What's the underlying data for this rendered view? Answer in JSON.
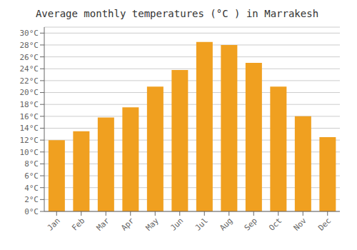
{
  "chart_data": {
    "type": "bar",
    "title": "Average monthly temperatures (°C ) in Marrakesh",
    "categories": [
      "Jan",
      "Feb",
      "Mar",
      "Apr",
      "May",
      "Jun",
      "Jul",
      "Aug",
      "Sep",
      "Oct",
      "Nov",
      "Dec"
    ],
    "values": [
      12,
      13.5,
      15.8,
      17.5,
      21,
      23.8,
      28.5,
      28,
      25,
      21,
      16,
      12.5
    ],
    "color": "#F0A020",
    "ylim": [
      0,
      31
    ],
    "yticks": [
      {
        "value": 0,
        "label": "0°C"
      },
      {
        "value": 2,
        "label": "2°C"
      },
      {
        "value": 4,
        "label": "4°C"
      },
      {
        "value": 6,
        "label": "6°C"
      },
      {
        "value": 8,
        "label": "8°C"
      },
      {
        "value": 10,
        "label": "10°C"
      },
      {
        "value": 12,
        "label": "12°C"
      },
      {
        "value": 14,
        "label": "14°C"
      },
      {
        "value": 16,
        "label": "16°C"
      },
      {
        "value": 18,
        "label": "18°C"
      },
      {
        "value": 20,
        "label": "20°C"
      },
      {
        "value": 22,
        "label": "22°C"
      },
      {
        "value": 24,
        "label": "24°C"
      },
      {
        "value": 26,
        "label": "26°C"
      },
      {
        "value": 28,
        "label": "28°C"
      },
      {
        "value": 30,
        "label": "30°C"
      }
    ],
    "grid": true
  }
}
